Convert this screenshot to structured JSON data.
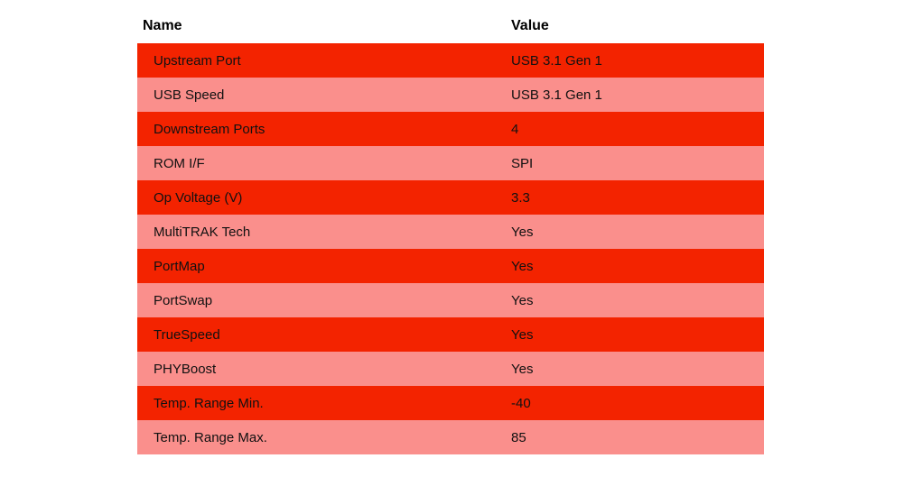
{
  "table": {
    "columns": {
      "name": "Name",
      "value": "Value"
    },
    "rows": [
      {
        "name": "Upstream Port",
        "value": "USB 3.1 Gen 1"
      },
      {
        "name": "USB Speed",
        "value": "USB 3.1 Gen 1"
      },
      {
        "name": "Downstream Ports",
        "value": "4"
      },
      {
        "name": "ROM I/F",
        "value": "SPI"
      },
      {
        "name": "Op Voltage (V)",
        "value": "3.3"
      },
      {
        "name": "MultiTRAK Tech",
        "value": "Yes"
      },
      {
        "name": "PortMap",
        "value": "Yes"
      },
      {
        "name": "PortSwap",
        "value": "Yes"
      },
      {
        "name": "TrueSpeed",
        "value": "Yes"
      },
      {
        "name": "PHYBoost",
        "value": "Yes"
      },
      {
        "name": "Temp. Range Min.",
        "value": "-40"
      },
      {
        "name": "Temp. Range Max.",
        "value": "85"
      }
    ],
    "colors": {
      "row_odd": "#f32300",
      "row_even": "#fa8f8c",
      "header_text": "#000000",
      "row_text": "#111111"
    }
  }
}
